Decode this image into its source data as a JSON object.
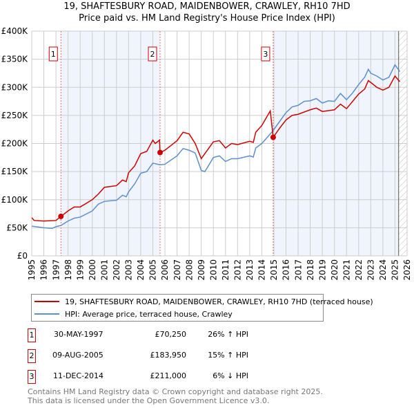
{
  "chart_data": {
    "type": "line",
    "title": "19, SHAFTESBURY ROAD, MAIDENBOWER, CRAWLEY, RH10 7HD",
    "subtitle": "Price paid vs. HM Land Registry's House Price Index (HPI)",
    "xlim": [
      1995,
      2026
    ],
    "ylim": [
      0,
      400000
    ],
    "x_ticks": [
      "1995",
      "1996",
      "1997",
      "1998",
      "1999",
      "2000",
      "2001",
      "2002",
      "2003",
      "2004",
      "2005",
      "2006",
      "2007",
      "2008",
      "2009",
      "2010",
      "2011",
      "2012",
      "2013",
      "2014",
      "2015",
      "2016",
      "2017",
      "2018",
      "2019",
      "2020",
      "2021",
      "2022",
      "2023",
      "2024",
      "2025",
      "2026"
    ],
    "y_ticks": [
      {
        "v": 0,
        "label": "£0"
      },
      {
        "v": 50000,
        "label": "£50K"
      },
      {
        "v": 100000,
        "label": "£100K"
      },
      {
        "v": 150000,
        "label": "£150K"
      },
      {
        "v": 200000,
        "label": "£200K"
      },
      {
        "v": 250000,
        "label": "£250K"
      },
      {
        "v": 300000,
        "label": "£300K"
      },
      {
        "v": 350000,
        "label": "£350K"
      },
      {
        "v": 400000,
        "label": "£400K"
      }
    ],
    "grid": true,
    "colors": {
      "property": "#cc0000",
      "hpi": "#5b8fd0",
      "shade": "#f0f4fc"
    },
    "series": [
      {
        "name": "19, SHAFTESBURY ROAD, MAIDENBOWER, CRAWLEY, RH10 7HD (terraced house)",
        "points": [
          [
            1995,
            68
          ],
          [
            1995.2,
            63
          ],
          [
            1996,
            62
          ],
          [
            1997,
            63
          ],
          [
            1997.41,
            70.25
          ],
          [
            1998,
            80
          ],
          [
            1998.5,
            87
          ],
          [
            1999,
            87
          ],
          [
            2000,
            100
          ],
          [
            2000.5,
            110
          ],
          [
            2001,
            122
          ],
          [
            2002,
            125
          ],
          [
            2002.5,
            135
          ],
          [
            2002.8,
            132
          ],
          [
            2003,
            148
          ],
          [
            2003.5,
            160
          ],
          [
            2004,
            182
          ],
          [
            2004.5,
            186
          ],
          [
            2005,
            206
          ],
          [
            2005.2,
            200
          ],
          [
            2005.55,
            206
          ],
          [
            2005.6,
            183.95
          ],
          [
            2006,
            188
          ],
          [
            2007,
            205
          ],
          [
            2007.5,
            220
          ],
          [
            2008,
            217
          ],
          [
            2008.5,
            200
          ],
          [
            2009,
            173
          ],
          [
            2010,
            203
          ],
          [
            2010.5,
            205
          ],
          [
            2011,
            192
          ],
          [
            2011.5,
            200
          ],
          [
            2012,
            198
          ],
          [
            2013,
            204
          ],
          [
            2013.3,
            202
          ],
          [
            2013.5,
            220
          ],
          [
            2014,
            232
          ],
          [
            2014.7,
            258
          ],
          [
            2014.94,
            211
          ],
          [
            2015.5,
            228
          ],
          [
            2016,
            242
          ],
          [
            2016.5,
            250
          ],
          [
            2017,
            252
          ],
          [
            2018,
            260
          ],
          [
            2018.5,
            263
          ],
          [
            2019,
            257
          ],
          [
            2020,
            260
          ],
          [
            2020.5,
            270
          ],
          [
            2021,
            262
          ],
          [
            2022,
            288
          ],
          [
            2022.5,
            297
          ],
          [
            2022.8,
            312
          ],
          [
            2023.5,
            300
          ],
          [
            2024,
            295
          ],
          [
            2024.5,
            300
          ],
          [
            2025,
            320
          ],
          [
            2025.4,
            310
          ]
        ]
      },
      {
        "name": "HPI: Average price, terraced house, Crawley",
        "points": [
          [
            1995,
            53
          ],
          [
            1996,
            50
          ],
          [
            1996.7,
            49
          ],
          [
            1997,
            52
          ],
          [
            1997.4,
            54
          ],
          [
            1998,
            62
          ],
          [
            1998.5,
            67
          ],
          [
            1999,
            69
          ],
          [
            2000,
            80
          ],
          [
            2000.5,
            92
          ],
          [
            2001,
            97
          ],
          [
            2002,
            99
          ],
          [
            2002.5,
            108
          ],
          [
            2002.8,
            105
          ],
          [
            2003,
            114
          ],
          [
            2003.5,
            128
          ],
          [
            2004,
            147
          ],
          [
            2004.5,
            150
          ],
          [
            2005,
            165
          ],
          [
            2005.6,
            162
          ],
          [
            2006,
            163
          ],
          [
            2007,
            178
          ],
          [
            2007.5,
            191
          ],
          [
            2008,
            188
          ],
          [
            2008.5,
            183
          ],
          [
            2009,
            152
          ],
          [
            2009.3,
            150
          ],
          [
            2010,
            175
          ],
          [
            2010.5,
            178
          ],
          [
            2011,
            168
          ],
          [
            2011.5,
            173
          ],
          [
            2012,
            173
          ],
          [
            2013,
            178
          ],
          [
            2013.3,
            176
          ],
          [
            2013.5,
            192
          ],
          [
            2014,
            200
          ],
          [
            2014.9,
            222
          ],
          [
            2015.5,
            240
          ],
          [
            2016,
            255
          ],
          [
            2016.5,
            265
          ],
          [
            2017,
            268
          ],
          [
            2017.5,
            275
          ],
          [
            2018,
            276
          ],
          [
            2018.5,
            280
          ],
          [
            2019,
            272
          ],
          [
            2019.5,
            276
          ],
          [
            2020,
            275
          ],
          [
            2020.5,
            289
          ],
          [
            2021,
            278
          ],
          [
            2021.5,
            290
          ],
          [
            2022,
            305
          ],
          [
            2022.5,
            318
          ],
          [
            2022.8,
            332
          ],
          [
            2023,
            325
          ],
          [
            2023.5,
            320
          ],
          [
            2024,
            313
          ],
          [
            2024.5,
            318
          ],
          [
            2025,
            340
          ],
          [
            2025.4,
            328
          ]
        ]
      }
    ],
    "sales": [
      {
        "id": "1",
        "x": 1997.41,
        "y": 70250
      },
      {
        "id": "2",
        "x": 2005.6,
        "y": 183950
      },
      {
        "id": "3",
        "x": 2014.94,
        "y": 211000
      }
    ],
    "forecast_start": 2025.3
  },
  "legend": {
    "property": "19, SHAFTESBURY ROAD, MAIDENBOWER, CRAWLEY, RH10 7HD (terraced house)",
    "hpi": "HPI: Average price, terraced house, Crawley"
  },
  "transactions": [
    {
      "id": "1",
      "date": "30-MAY-1997",
      "price": "£70,250",
      "hpi": "26% ↑ HPI"
    },
    {
      "id": "2",
      "date": "09-AUG-2005",
      "price": "£183,950",
      "hpi": "15% ↑ HPI"
    },
    {
      "id": "3",
      "date": "11-DEC-2014",
      "price": "£211,000",
      "hpi": "6% ↓ HPI"
    }
  ],
  "footer": {
    "line1": "Contains HM Land Registry data © Crown copyright and database right 2025.",
    "line2": "This data is licensed under the Open Government Licence v3.0."
  }
}
